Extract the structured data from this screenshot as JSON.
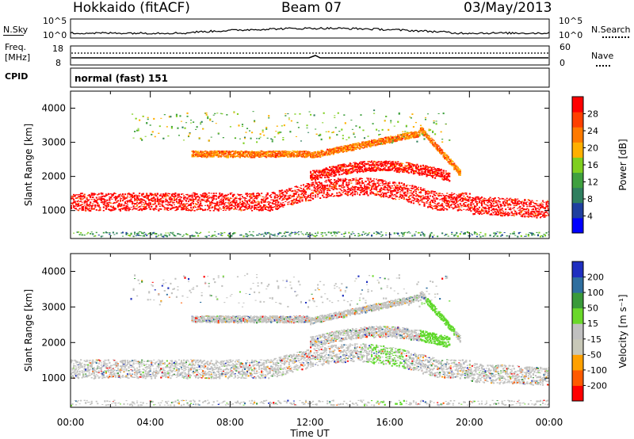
{
  "header": {
    "station": "Hokkaido (fitACF)",
    "beam": "Beam 07",
    "date": "03/May/2013"
  },
  "top_panels": {
    "nsky_label": "N.Sky",
    "nsearch_label": "N.Search",
    "noise_ticks": [
      "10^5",
      "10^0"
    ],
    "freq_label_1": "Freq.",
    "freq_label_2": "[MHz]",
    "freq_ticks": [
      "18",
      "8"
    ],
    "nave_label": "Nave",
    "nave_ticks": [
      "60",
      "0"
    ],
    "cpid_label": "CPID",
    "cpid_text": "normal (fast) 151"
  },
  "colors": {
    "power_scale": [
      "#0000ff",
      "#1f3f9f",
      "#2f7f5f",
      "#3fa03f",
      "#7fcf1f",
      "#ffb000",
      "#ff7a00",
      "#ff4000",
      "#ff0000"
    ],
    "velocity_scale": [
      "#ff0000",
      "#ff5a00",
      "#ffa000",
      "#c8c8b8",
      "#c0c0c0",
      "#6ad82a",
      "#3a9a3a",
      "#2f6f9f",
      "#1f2fc0"
    ]
  },
  "chart_data": [
    {
      "type": "heatmap",
      "ylabel": "Slant Range [km]",
      "colorbar_label": "Power [dB]",
      "colorbar_ticks": [
        "28",
        "24",
        "20",
        "16",
        "12",
        "8",
        "4"
      ],
      "ylim": [
        180,
        4500
      ],
      "yticks": [
        "4000",
        "3000",
        "2000",
        "1000"
      ],
      "xlim": [
        0,
        24
      ],
      "dominant_echo_bands": [
        {
          "t_start": 0,
          "t_end": 24,
          "range_approx_km": [
            900,
            1500
          ],
          "power_dB": 28
        },
        {
          "t_start": 7,
          "t_end": 19,
          "range_approx_km": [
            2500,
            2700
          ],
          "power_dB": 26
        },
        {
          "t_start": 13,
          "t_end": 19,
          "range_approx_km": [
            1800,
            2300
          ],
          "power_dB": 26
        }
      ]
    },
    {
      "type": "heatmap",
      "ylabel": "Slant Range [km]",
      "colorbar_label": "Velocity [m s⁻¹]",
      "colorbar_ticks": [
        "200",
        "100",
        "50",
        "15",
        "-15",
        "-50",
        "-100",
        "-200"
      ],
      "ylim": [
        180,
        4500
      ],
      "yticks": [
        "4000",
        "3000",
        "2000",
        "1000"
      ],
      "xlim": [
        0,
        24
      ],
      "xticks": [
        "00:00",
        "04:00",
        "08:00",
        "12:00",
        "16:00",
        "20:00",
        "00:00"
      ],
      "xlabel": "Time UT"
    }
  ]
}
